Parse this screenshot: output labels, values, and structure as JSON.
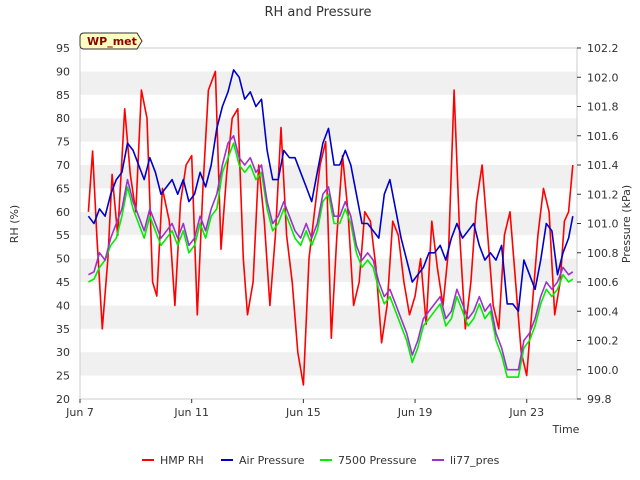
{
  "chart_data": {
    "type": "line",
    "title": "RH and Pressure",
    "xlabel": "Time",
    "ylabel": "RH (%)",
    "y2label": "Pressure (kPa)",
    "badge": "WP_met",
    "x_ticks": [
      "Jun 7",
      "Jun 11",
      "Jun 15",
      "Jun 19",
      "Jun 23"
    ],
    "x_tick_days": [
      7,
      11,
      15,
      19,
      23
    ],
    "xlim": [
      7,
      24.8
    ],
    "ylim": [
      20,
      95
    ],
    "y_ticks": [
      20,
      25,
      30,
      35,
      40,
      45,
      50,
      55,
      60,
      65,
      70,
      75,
      80,
      85,
      90,
      95
    ],
    "y2lim": [
      99.8,
      102.2
    ],
    "y2_ticks": [
      "99.8",
      "100.0",
      "100.2",
      "100.4",
      "100.6",
      "100.8",
      "101.0",
      "101.2",
      "101.4",
      "101.6",
      "101.8",
      "102.0",
      "102.2"
    ],
    "y2_tick_values": [
      99.8,
      100.0,
      100.2,
      100.4,
      100.6,
      100.8,
      101.0,
      101.2,
      101.4,
      101.6,
      101.8,
      102.0,
      102.2
    ],
    "grid": "horizontal bands",
    "legend": "bottom",
    "series": [
      {
        "name": "HMP RH",
        "axis": "left",
        "color": "#ff0000",
        "x": [
          7.3,
          7.45,
          7.6,
          7.8,
          8.0,
          8.15,
          8.35,
          8.6,
          8.8,
          9.0,
          9.2,
          9.4,
          9.6,
          9.75,
          9.95,
          10.2,
          10.4,
          10.6,
          10.8,
          11.0,
          11.2,
          11.4,
          11.6,
          11.85,
          12.05,
          12.25,
          12.45,
          12.65,
          12.85,
          13.0,
          13.2,
          13.4,
          13.6,
          13.8,
          14.0,
          14.2,
          14.4,
          14.6,
          14.8,
          15.0,
          15.2,
          15.4,
          15.6,
          15.8,
          16.0,
          16.2,
          16.4,
          16.6,
          16.8,
          17.0,
          17.2,
          17.4,
          17.6,
          17.8,
          18.0,
          18.2,
          18.4,
          18.6,
          18.8,
          19.0,
          19.2,
          19.4,
          19.6,
          19.8,
          20.0,
          20.2,
          20.4,
          20.6,
          20.8,
          21.0,
          21.2,
          21.4,
          21.6,
          21.8,
          22.0,
          22.2,
          22.4,
          22.6,
          22.8,
          23.0,
          23.2,
          23.4,
          23.6,
          23.8,
          24.0,
          24.2,
          24.35,
          24.5,
          24.65
        ],
        "values": [
          60,
          73,
          55,
          35,
          50,
          68,
          55,
          82,
          68,
          60,
          86,
          80,
          45,
          42,
          65,
          58,
          40,
          62,
          70,
          72,
          38,
          65,
          86,
          90,
          52,
          68,
          80,
          82,
          50,
          38,
          45,
          70,
          58,
          40,
          55,
          78,
          55,
          45,
          30,
          23,
          50,
          60,
          70,
          75,
          33,
          55,
          72,
          60,
          40,
          45,
          60,
          58,
          48,
          32,
          40,
          58,
          55,
          45,
          38,
          42,
          50,
          36,
          58,
          48,
          40,
          52,
          86,
          55,
          35,
          45,
          62,
          70,
          55,
          40,
          35,
          55,
          60,
          45,
          30,
          25,
          40,
          55,
          65,
          60,
          38,
          45,
          58,
          60,
          70
        ]
      },
      {
        "name": "Air Pressure",
        "axis": "right",
        "color": "#0000cc",
        "x": [
          7.3,
          7.5,
          7.7,
          7.9,
          8.1,
          8.3,
          8.5,
          8.7,
          8.9,
          9.1,
          9.3,
          9.5,
          9.7,
          9.9,
          10.1,
          10.3,
          10.5,
          10.7,
          10.9,
          11.1,
          11.3,
          11.5,
          11.7,
          11.9,
          12.1,
          12.3,
          12.5,
          12.7,
          12.9,
          13.1,
          13.3,
          13.5,
          13.7,
          13.9,
          14.1,
          14.3,
          14.5,
          14.7,
          14.9,
          15.1,
          15.3,
          15.5,
          15.7,
          15.9,
          16.1,
          16.3,
          16.5,
          16.7,
          16.9,
          17.1,
          17.3,
          17.5,
          17.7,
          17.9,
          18.1,
          18.3,
          18.5,
          18.7,
          18.9,
          19.1,
          19.3,
          19.5,
          19.7,
          19.9,
          20.1,
          20.3,
          20.5,
          20.7,
          20.9,
          21.1,
          21.3,
          21.5,
          21.7,
          21.9,
          22.1,
          22.3,
          22.5,
          22.7,
          22.9,
          23.1,
          23.3,
          23.5,
          23.7,
          23.9,
          24.1,
          24.3,
          24.5,
          24.65
        ],
        "values": [
          101.05,
          101.0,
          101.1,
          101.05,
          101.2,
          101.3,
          101.35,
          101.55,
          101.5,
          101.4,
          101.3,
          101.45,
          101.35,
          101.2,
          101.25,
          101.3,
          101.2,
          101.3,
          101.15,
          101.2,
          101.35,
          101.25,
          101.4,
          101.65,
          101.8,
          101.9,
          102.05,
          102.0,
          101.85,
          101.9,
          101.8,
          101.85,
          101.5,
          101.3,
          101.3,
          101.5,
          101.45,
          101.45,
          101.35,
          101.25,
          101.15,
          101.35,
          101.55,
          101.65,
          101.4,
          101.4,
          101.5,
          101.4,
          101.2,
          101.0,
          101.0,
          100.95,
          100.9,
          101.2,
          101.3,
          101.1,
          100.9,
          100.75,
          100.6,
          100.65,
          100.7,
          100.8,
          100.8,
          100.85,
          100.75,
          100.9,
          101.0,
          100.9,
          100.95,
          101.0,
          100.85,
          100.75,
          100.8,
          100.75,
          100.85,
          100.45,
          100.45,
          100.4,
          100.75,
          100.65,
          100.55,
          100.75,
          101.0,
          100.95,
          100.65,
          100.8,
          100.9,
          101.05
        ]
      },
      {
        "name": "7500 Pressure",
        "axis": "right",
        "color": "#00ee00",
        "x": [
          7.3,
          7.5,
          7.7,
          7.9,
          8.1,
          8.3,
          8.5,
          8.7,
          8.9,
          9.1,
          9.3,
          9.5,
          9.7,
          9.9,
          10.1,
          10.3,
          10.5,
          10.7,
          10.9,
          11.1,
          11.3,
          11.5,
          11.7,
          11.9,
          12.1,
          12.3,
          12.5,
          12.7,
          12.9,
          13.1,
          13.3,
          13.5,
          13.7,
          13.9,
          14.1,
          14.3,
          14.5,
          14.7,
          14.9,
          15.1,
          15.3,
          15.5,
          15.7,
          15.9,
          16.1,
          16.3,
          16.5,
          16.7,
          16.9,
          17.1,
          17.3,
          17.5,
          17.7,
          17.9,
          18.1,
          18.3,
          18.5,
          18.7,
          18.9,
          19.1,
          19.3,
          19.5,
          19.7,
          19.9,
          20.1,
          20.3,
          20.5,
          20.7,
          20.9,
          21.1,
          21.3,
          21.5,
          21.7,
          21.9,
          22.1,
          22.3,
          22.5,
          22.7,
          22.9,
          23.1,
          23.3,
          23.5,
          23.7,
          23.9,
          24.1,
          24.3,
          24.5,
          24.65
        ],
        "values": [
          100.6,
          100.62,
          100.7,
          100.75,
          100.85,
          100.9,
          101.05,
          101.25,
          101.1,
          101.0,
          100.9,
          101.05,
          100.95,
          100.85,
          100.9,
          100.95,
          100.85,
          100.95,
          100.8,
          100.85,
          101.0,
          100.9,
          101.05,
          101.1,
          101.35,
          101.45,
          101.55,
          101.4,
          101.35,
          101.4,
          101.3,
          101.35,
          101.1,
          100.95,
          101.0,
          101.1,
          101.0,
          100.9,
          100.85,
          100.95,
          100.85,
          100.95,
          101.15,
          101.2,
          101.0,
          101.0,
          101.1,
          101.0,
          100.8,
          100.7,
          100.75,
          100.7,
          100.55,
          100.45,
          100.5,
          100.4,
          100.3,
          100.2,
          100.05,
          100.15,
          100.3,
          100.35,
          100.4,
          100.45,
          100.3,
          100.35,
          100.5,
          100.4,
          100.3,
          100.35,
          100.45,
          100.35,
          100.4,
          100.2,
          100.1,
          99.95,
          99.95,
          99.95,
          100.15,
          100.2,
          100.3,
          100.45,
          100.55,
          100.5,
          100.55,
          100.65,
          100.6,
          100.62
        ]
      },
      {
        "name": "li77_pres",
        "axis": "right",
        "color": "#9933cc",
        "x": [
          7.3,
          7.5,
          7.7,
          7.9,
          8.1,
          8.3,
          8.5,
          8.7,
          8.9,
          9.1,
          9.3,
          9.5,
          9.7,
          9.9,
          10.1,
          10.3,
          10.5,
          10.7,
          10.9,
          11.1,
          11.3,
          11.5,
          11.7,
          11.9,
          12.1,
          12.3,
          12.5,
          12.7,
          12.9,
          13.1,
          13.3,
          13.5,
          13.7,
          13.9,
          14.1,
          14.3,
          14.5,
          14.7,
          14.9,
          15.1,
          15.3,
          15.5,
          15.7,
          15.9,
          16.1,
          16.3,
          16.5,
          16.7,
          16.9,
          17.1,
          17.3,
          17.5,
          17.7,
          17.9,
          18.1,
          18.3,
          18.5,
          18.7,
          18.9,
          19.1,
          19.3,
          19.5,
          19.7,
          19.9,
          20.1,
          20.3,
          20.5,
          20.7,
          20.9,
          21.1,
          21.3,
          21.5,
          21.7,
          21.9,
          22.1,
          22.3,
          22.5,
          22.7,
          22.9,
          23.1,
          23.3,
          23.5,
          23.7,
          23.9,
          24.1,
          24.3,
          24.5,
          24.65
        ],
        "values": [
          100.65,
          100.67,
          100.8,
          100.75,
          100.9,
          101.0,
          101.1,
          101.3,
          101.15,
          101.05,
          100.95,
          101.1,
          101.0,
          100.9,
          100.95,
          101.0,
          100.9,
          101.0,
          100.85,
          100.9,
          101.05,
          100.95,
          101.1,
          101.2,
          101.4,
          101.55,
          101.6,
          101.45,
          101.4,
          101.45,
          101.35,
          101.4,
          101.15,
          101.0,
          101.05,
          101.15,
          101.05,
          100.95,
          100.9,
          101.0,
          100.9,
          101.0,
          101.2,
          101.25,
          101.05,
          101.05,
          101.15,
          101.05,
          100.85,
          100.75,
          100.8,
          100.75,
          100.6,
          100.5,
          100.55,
          100.45,
          100.35,
          100.25,
          100.1,
          100.2,
          100.35,
          100.4,
          100.45,
          100.5,
          100.35,
          100.4,
          100.55,
          100.45,
          100.35,
          100.4,
          100.5,
          100.4,
          100.45,
          100.25,
          100.15,
          100.0,
          100.0,
          100.0,
          100.2,
          100.25,
          100.35,
          100.5,
          100.6,
          100.55,
          100.6,
          100.7,
          100.65,
          100.67
        ]
      }
    ]
  }
}
